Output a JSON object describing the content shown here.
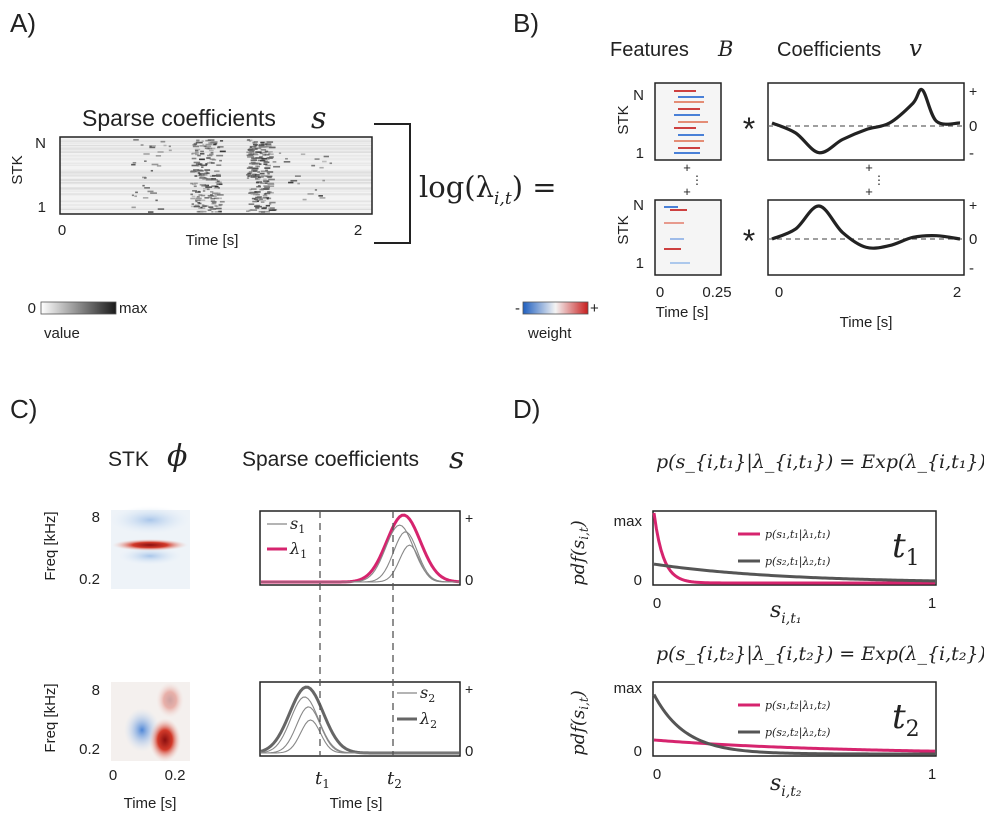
{
  "panels": {
    "A": {
      "letter": "A)",
      "title": "Sparse coefficients",
      "title_symbol": "s",
      "ylabel": "STK",
      "ytick_top": "N",
      "ytick_bottom": "1",
      "xlabel": "Time [s]",
      "xtick_left": "0",
      "xtick_right": "2",
      "colorbar": {
        "min_label": "0",
        "max_label": "max",
        "label": "value"
      },
      "equation": "log(λ",
      "equation_sub": "i,t",
      "equation_end": ") ="
    },
    "B": {
      "letter": "B)",
      "features_title": "Features",
      "features_symbol": "B",
      "coeff_title": "Coefficients",
      "coeff_symbol": "v",
      "ylabel": "STK",
      "ytick_top": "N",
      "ytick_bottom": "1",
      "feat_xtick_left": "0",
      "feat_xtick_right": "0.25",
      "feat_xlabel": "Time [s]",
      "coeff_xtick_left": "0",
      "coeff_xtick_right": "2",
      "coeff_xlabel": "Time [s]",
      "coeff_ytick_plus": "+",
      "coeff_ytick_zero": "0",
      "coeff_ytick_minus": "-",
      "star": "*",
      "plus": "+",
      "dots": "⋮",
      "colorbar": {
        "min_label": "-",
        "max_label": "+",
        "label": "weight"
      }
    },
    "C": {
      "letter": "C)",
      "stk_title": "STK",
      "stk_symbol": "ϕ",
      "sparse_title": "Sparse coefficients",
      "sparse_symbol": "s",
      "freq_label": "Freq [kHz]",
      "freq_top": "8",
      "freq_bottom": "0.2",
      "stk_xtick_left": "0",
      "stk_xtick_right": "0.2",
      "stk_xlabel": "Time [s]",
      "sparse_xlabel": "Time [s]",
      "t1": "t",
      "t1_sub": "1",
      "t2": "t",
      "t2_sub": "2",
      "ytick_plus": "+",
      "ytick_zero": "0",
      "legend_top": [
        {
          "sym": "s",
          "sub": "1",
          "color": "#888888"
        },
        {
          "sym": "λ",
          "sub": "1",
          "color": "#d6246e"
        }
      ],
      "legend_bottom": [
        {
          "sym": "s",
          "sub": "2",
          "color": "#888888"
        },
        {
          "sym": "λ",
          "sub": "2",
          "color": "#666666"
        }
      ]
    },
    "D": {
      "letter": "D)",
      "eq_top": "p(s_{i,t₁}|λ_{i,t₁}) = Exp(λ_{i,t₁})",
      "eq_bottom": "p(s_{i,t₂}|λ_{i,t₂}) = Exp(λ_{i,t₂})",
      "ylabel": "pdf(s",
      "ylabel_sub": "i,t",
      "ytick_max": "max",
      "ytick_zero": "0",
      "xtick_left": "0",
      "xtick_right": "1",
      "xlabel_top": "s",
      "xlabel_top_sub": "i,t₁",
      "xlabel_bottom": "s",
      "xlabel_bottom_sub": "i,t₂",
      "tag_top": "t",
      "tag_top_sub": "1",
      "tag_bottom": "t",
      "tag_bottom_sub": "2",
      "legend_top": [
        {
          "text": "p(s₁,t₁|λ₁,t₁)",
          "color": "#d6246e"
        },
        {
          "text": "p(s₂,t₁|λ₂,t₁)",
          "color": "#555555"
        }
      ],
      "legend_bottom": [
        {
          "text": "p(s₁,t₂|λ₁,t₂)",
          "color": "#d6246e"
        },
        {
          "text": "p(s₂,t₂|λ₂,t₂)",
          "color": "#555555"
        }
      ]
    }
  },
  "colors": {
    "pink": "#d6246e",
    "dark": "#555555",
    "line": "#222222",
    "blue": "#2a6bd1",
    "red": "#c62020"
  },
  "chart_data": [
    {
      "type": "line",
      "panel": "B-coeff-1",
      "x": [
        0,
        0.25,
        0.5,
        0.75,
        1.0,
        1.25,
        1.5,
        1.6,
        1.75,
        2.0
      ],
      "values": [
        0,
        -0.3,
        -0.9,
        -0.5,
        -0.2,
        0.0,
        0.6,
        1.0,
        0.05,
        0
      ],
      "xlim": [
        0,
        2
      ],
      "ylim": [
        -1,
        1
      ]
    },
    {
      "type": "line",
      "panel": "B-coeff-2",
      "x": [
        0,
        0.25,
        0.5,
        0.75,
        1.0,
        1.25,
        1.5,
        1.75,
        2.0
      ],
      "values": [
        0,
        0.3,
        1.0,
        0.2,
        -0.25,
        -0.2,
        0.05,
        0.1,
        0
      ],
      "xlim": [
        0,
        2
      ],
      "ylim": [
        -1,
        1
      ]
    },
    {
      "type": "line",
      "panel": "C-sparse-1",
      "xlim": [
        0,
        1
      ],
      "ylim": [
        0,
        1
      ],
      "series": [
        {
          "name": "λ1",
          "center": 0.72,
          "width": 0.085,
          "amp": 1.0
        },
        {
          "name": "s1",
          "center": 0.7,
          "width": 0.07,
          "amp": 0.85
        },
        {
          "name": "s1",
          "center": 0.73,
          "width": 0.06,
          "amp": 0.75
        },
        {
          "name": "s1",
          "center": 0.75,
          "width": 0.05,
          "amp": 0.55
        }
      ]
    },
    {
      "type": "line",
      "panel": "C-sparse-2",
      "xlim": [
        0,
        1
      ],
      "ylim": [
        0,
        1
      ],
      "series": [
        {
          "name": "λ2",
          "center": 0.23,
          "width": 0.085,
          "amp": 1.0
        },
        {
          "name": "s2",
          "center": 0.22,
          "width": 0.07,
          "amp": 0.85
        },
        {
          "name": "s2",
          "center": 0.24,
          "width": 0.06,
          "amp": 0.7
        },
        {
          "name": "s2",
          "center": 0.25,
          "width": 0.05,
          "amp": 0.5
        }
      ]
    },
    {
      "type": "line",
      "panel": "D-top",
      "xlim": [
        0,
        1
      ],
      "ylim": [
        0,
        1
      ],
      "series": [
        {
          "name": "p(s1,t1|λ1,t1)",
          "rate": 30,
          "amp": 1.0
        },
        {
          "name": "p(s2,t1|λ2,t1)",
          "rate": 2.2,
          "amp": 0.27
        }
      ]
    },
    {
      "type": "line",
      "panel": "D-bottom",
      "xlim": [
        0,
        1
      ],
      "ylim": [
        0,
        1
      ],
      "series": [
        {
          "name": "p(s1,t2|λ1,t2)",
          "rate": 1.6,
          "amp": 0.2
        },
        {
          "name": "p(s2,t2|λ2,t2)",
          "rate": 9,
          "amp": 0.85
        }
      ]
    }
  ]
}
